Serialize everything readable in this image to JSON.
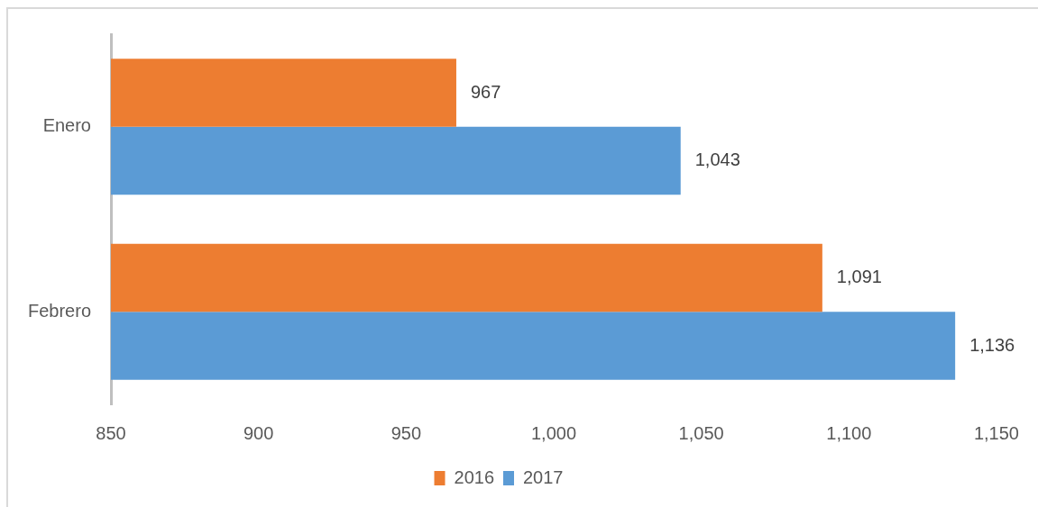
{
  "chart_data": {
    "type": "bar",
    "orientation": "horizontal",
    "categories": [
      "Enero",
      "Febrero"
    ],
    "series": [
      {
        "name": "2016",
        "color": "#ed7d31",
        "values": [
          967,
          1091
        ],
        "value_labels": [
          "967",
          "1,091"
        ]
      },
      {
        "name": "2017",
        "color": "#5b9bd5",
        "values": [
          1043,
          1136
        ],
        "value_labels": [
          "1,043",
          "1,136"
        ]
      }
    ],
    "xlim": [
      850,
      1150
    ],
    "xticks": [
      850,
      900,
      950,
      {
        "value": 1000,
        "label": "1,000"
      },
      {
        "value": 1050,
        "label": "1,050"
      },
      {
        "value": 1100,
        "label": "1,100"
      },
      {
        "value": 1150,
        "label": "1,150"
      }
    ],
    "grid": false,
    "legend": "bottom"
  }
}
